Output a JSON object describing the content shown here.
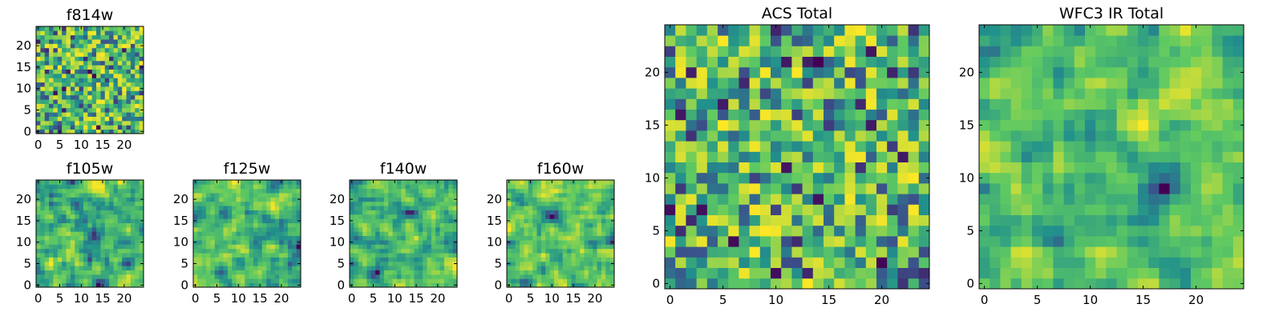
{
  "chart_data": [
    {
      "type": "heatmap",
      "title": "f814w",
      "grid_size": [
        25,
        25
      ],
      "colormap": "viridis",
      "xticks": [
        0,
        5,
        10,
        15,
        20
      ],
      "yticks": [
        0,
        5,
        10,
        15,
        20
      ],
      "xlim": [
        -0.5,
        24.5
      ],
      "ylim": [
        -0.5,
        24.5
      ],
      "values_pattern": "noise",
      "seed": 814
    },
    {
      "type": "heatmap",
      "title": "f105w",
      "grid_size": [
        25,
        25
      ],
      "colormap": "viridis",
      "xticks": [
        0,
        5,
        10,
        15,
        20
      ],
      "yticks": [
        0,
        5,
        10,
        15,
        20
      ],
      "xlim": [
        -0.5,
        24.5
      ],
      "ylim": [
        -0.5,
        24.5
      ],
      "values_pattern": "smooth",
      "seed": 105
    },
    {
      "type": "heatmap",
      "title": "f125w",
      "grid_size": [
        25,
        25
      ],
      "colormap": "viridis",
      "xticks": [
        0,
        5,
        10,
        15,
        20
      ],
      "yticks": [
        0,
        5,
        10,
        15,
        20
      ],
      "xlim": [
        -0.5,
        24.5
      ],
      "ylim": [
        -0.5,
        24.5
      ],
      "values_pattern": "smooth",
      "seed": 125
    },
    {
      "type": "heatmap",
      "title": "f140w",
      "grid_size": [
        25,
        25
      ],
      "colormap": "viridis",
      "xticks": [
        0,
        5,
        10,
        15,
        20
      ],
      "yticks": [
        0,
        5,
        10,
        15,
        20
      ],
      "xlim": [
        -0.5,
        24.5
      ],
      "ylim": [
        -0.5,
        24.5
      ],
      "values_pattern": "smooth",
      "seed": 140
    },
    {
      "type": "heatmap",
      "title": "f160w",
      "grid_size": [
        25,
        25
      ],
      "colormap": "viridis",
      "xticks": [
        0,
        5,
        10,
        15,
        20
      ],
      "yticks": [
        0,
        5,
        10,
        15,
        20
      ],
      "xlim": [
        -0.5,
        24.5
      ],
      "ylim": [
        -0.5,
        24.5
      ],
      "values_pattern": "smooth",
      "seed": 160
    },
    {
      "type": "heatmap",
      "title": "ACS Total",
      "grid_size": [
        25,
        25
      ],
      "colormap": "viridis",
      "xticks": [
        0,
        5,
        10,
        15,
        20
      ],
      "yticks": [
        0,
        5,
        10,
        15,
        20
      ],
      "xlim": [
        -0.5,
        24.5
      ],
      "ylim": [
        -0.5,
        24.5
      ],
      "values_pattern": "noise",
      "seed": 2
    },
    {
      "type": "heatmap",
      "title": "WFC3 IR Total",
      "grid_size": [
        25,
        25
      ],
      "colormap": "viridis",
      "xticks": [
        0,
        5,
        10,
        15,
        20
      ],
      "yticks": [
        0,
        5,
        10,
        15,
        20
      ],
      "xlim": [
        -0.5,
        24.5
      ],
      "ylim": [
        -0.5,
        24.5
      ],
      "values_pattern": "smooth",
      "seed": 3
    }
  ],
  "colors": {
    "viridis_stops": [
      "#440154",
      "#3b528b",
      "#21918c",
      "#5ec962",
      "#fde725"
    ]
  }
}
